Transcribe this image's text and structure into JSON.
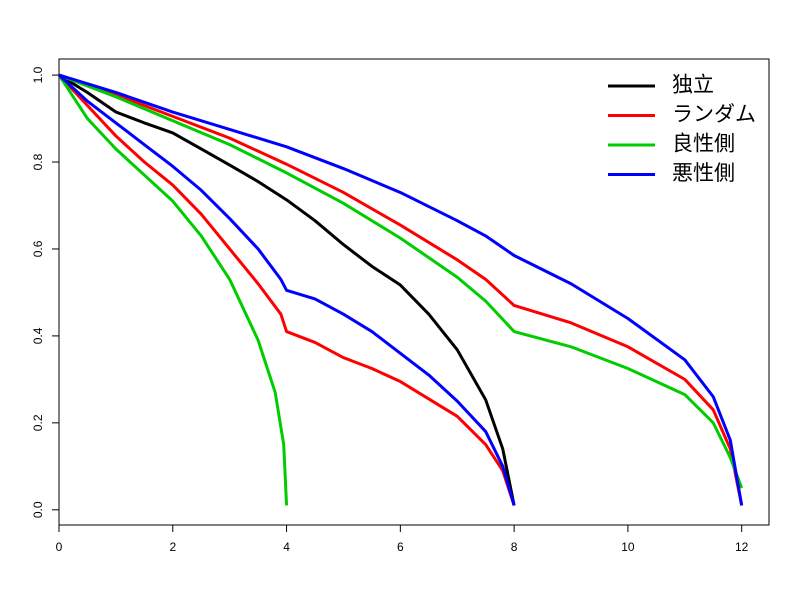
{
  "chart_data": {
    "type": "line",
    "xlim": [
      0,
      12.48
    ],
    "ylim": [
      -0.035,
      1.037
    ],
    "xticks": [
      0,
      2,
      4,
      6,
      8,
      10,
      12
    ],
    "yticks": [
      {
        "value": 0,
        "label": "0.0"
      },
      0.2,
      0.4,
      0.6,
      0.8,
      {
        "value": 1,
        "label": "1.0"
      }
    ],
    "legend": "topright",
    "series": [
      {
        "name": "独立",
        "color": "#000000",
        "x": [
          0,
          0.5,
          1,
          1.5,
          2,
          2.5,
          3,
          3.5,
          4,
          4.5,
          5,
          5.5,
          6,
          6.5,
          7,
          7.5,
          7.8,
          8
        ],
        "values": [
          1,
          0.96,
          0.915,
          0.89,
          0.867,
          0.83,
          0.793,
          0.755,
          0.713,
          0.665,
          0.61,
          0.56,
          0.517,
          0.45,
          0.368,
          0.253,
          0.14,
          0.01
        ]
      },
      {
        "name": "ランダム",
        "color": "#ff0000",
        "x": [
          0,
          0.5,
          1,
          1.5,
          2,
          2.5,
          3,
          3.5,
          3.9,
          4,
          4.5,
          5,
          5.5,
          6,
          6.5,
          7,
          7.5,
          7.8,
          8,
          null,
          0,
          1,
          2,
          3,
          4,
          5,
          6,
          7,
          7.5,
          8,
          9,
          10,
          11,
          11.5,
          11.8,
          12
        ],
        "values": [
          1,
          0.93,
          0.86,
          0.8,
          0.747,
          0.68,
          0.6,
          0.52,
          0.45,
          0.41,
          0.385,
          0.35,
          0.325,
          0.295,
          0.255,
          0.215,
          0.15,
          0.09,
          0.01,
          null,
          1,
          0.955,
          0.905,
          0.855,
          0.795,
          0.73,
          0.655,
          0.575,
          0.53,
          0.47,
          0.43,
          0.375,
          0.3,
          0.23,
          0.14,
          0.01
        ]
      },
      {
        "name": "良性側",
        "color": "#00cd00",
        "x": [
          0,
          0.5,
          1,
          1.5,
          2,
          2.5,
          3,
          3.5,
          3.8,
          3.95,
          4,
          null,
          0,
          1,
          2,
          3,
          4,
          5,
          6,
          7,
          7.5,
          8,
          9,
          10,
          11,
          11.5,
          11.8,
          12
        ],
        "values": [
          1,
          0.9,
          0.83,
          0.77,
          0.71,
          0.63,
          0.53,
          0.39,
          0.27,
          0.15,
          0.01,
          null,
          1,
          0.95,
          0.895,
          0.84,
          0.775,
          0.705,
          0.625,
          0.535,
          0.48,
          0.41,
          0.375,
          0.325,
          0.265,
          0.2,
          0.12,
          0.05
        ]
      },
      {
        "name": "悪性側",
        "color": "#0000ff",
        "x": [
          0,
          0.5,
          1,
          1.5,
          2,
          2.5,
          3,
          3.5,
          3.9,
          4,
          4.5,
          5,
          5.5,
          6,
          6.5,
          7,
          7.5,
          7.8,
          8,
          null,
          0,
          1,
          2,
          3,
          4,
          5,
          6,
          7,
          7.5,
          8,
          9,
          10,
          11,
          11.5,
          11.8,
          12
        ],
        "values": [
          1,
          0.94,
          0.89,
          0.84,
          0.79,
          0.735,
          0.67,
          0.6,
          0.53,
          0.505,
          0.485,
          0.45,
          0.41,
          0.36,
          0.31,
          0.25,
          0.18,
          0.1,
          0.01,
          null,
          1,
          0.96,
          0.915,
          0.875,
          0.835,
          0.785,
          0.73,
          0.665,
          0.63,
          0.585,
          0.52,
          0.44,
          0.345,
          0.26,
          0.16,
          0.01
        ]
      }
    ]
  }
}
